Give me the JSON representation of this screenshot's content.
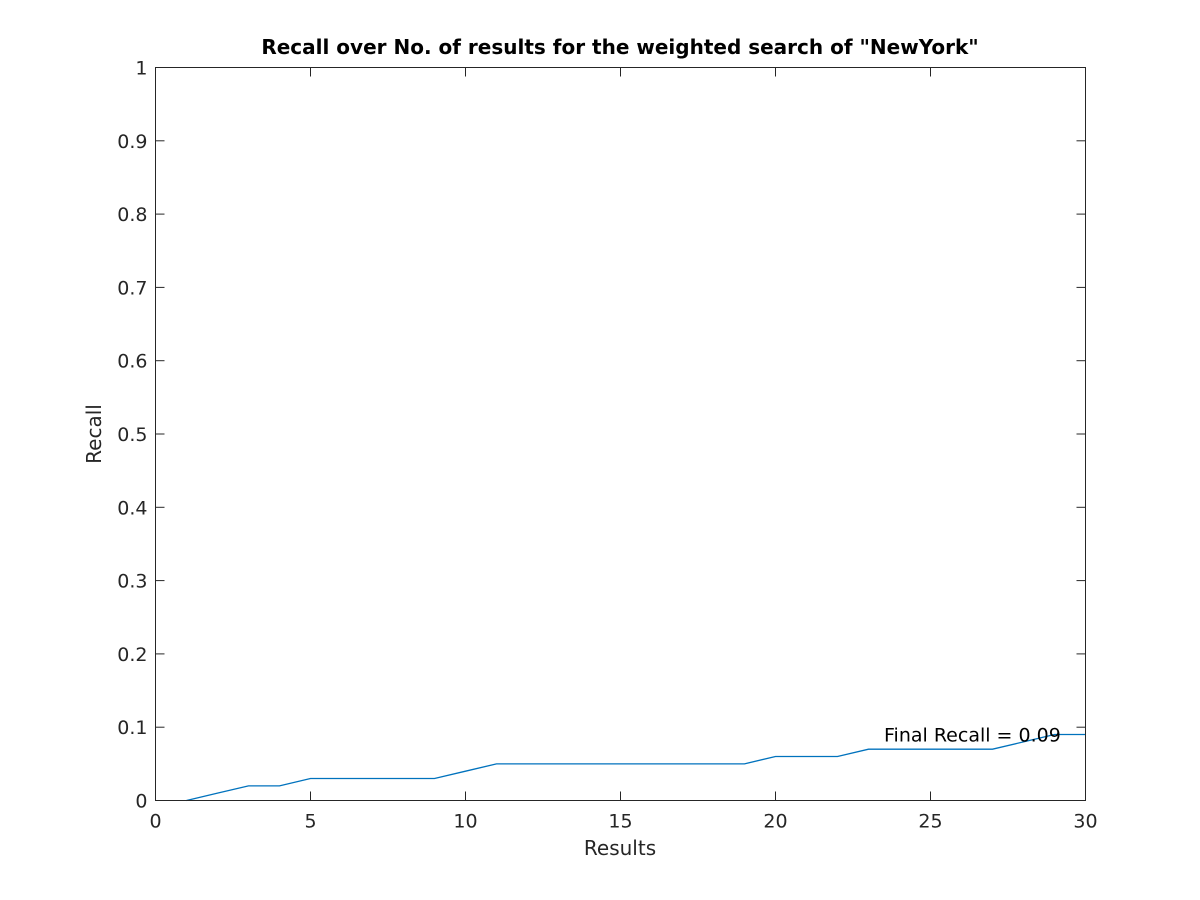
{
  "chart_data": {
    "type": "line",
    "title": "Recall over No. of results for the weighted search of \"NewYork\"",
    "xlabel": "Results",
    "ylabel": "Recall",
    "xlim": [
      0,
      30
    ],
    "ylim": [
      0,
      1
    ],
    "xticks": [
      "0",
      "5",
      "10",
      "15",
      "20",
      "25",
      "30"
    ],
    "yticks": [
      "0",
      "0.1",
      "0.2",
      "0.3",
      "0.4",
      "0.5",
      "0.6",
      "0.7",
      "0.8",
      "0.9",
      "1"
    ],
    "grid": false,
    "series": [
      {
        "color": "#0072bd",
        "x": [
          1,
          2,
          3,
          4,
          5,
          6,
          7,
          8,
          9,
          10,
          11,
          12,
          13,
          14,
          15,
          16,
          17,
          18,
          19,
          20,
          21,
          22,
          23,
          24,
          25,
          26,
          27,
          28,
          29,
          30
        ],
        "y": [
          0,
          0.01,
          0.02,
          0.02,
          0.03,
          0.03,
          0.03,
          0.03,
          0.03,
          0.04,
          0.05,
          0.05,
          0.05,
          0.05,
          0.05,
          0.05,
          0.05,
          0.05,
          0.05,
          0.06,
          0.06,
          0.06,
          0.07,
          0.07,
          0.07,
          0.07,
          0.07,
          0.08,
          0.09,
          0.09
        ]
      }
    ],
    "annotations": [
      {
        "text": "Final Recall = 0.09",
        "x": 23.5,
        "y": 0.09
      }
    ]
  }
}
